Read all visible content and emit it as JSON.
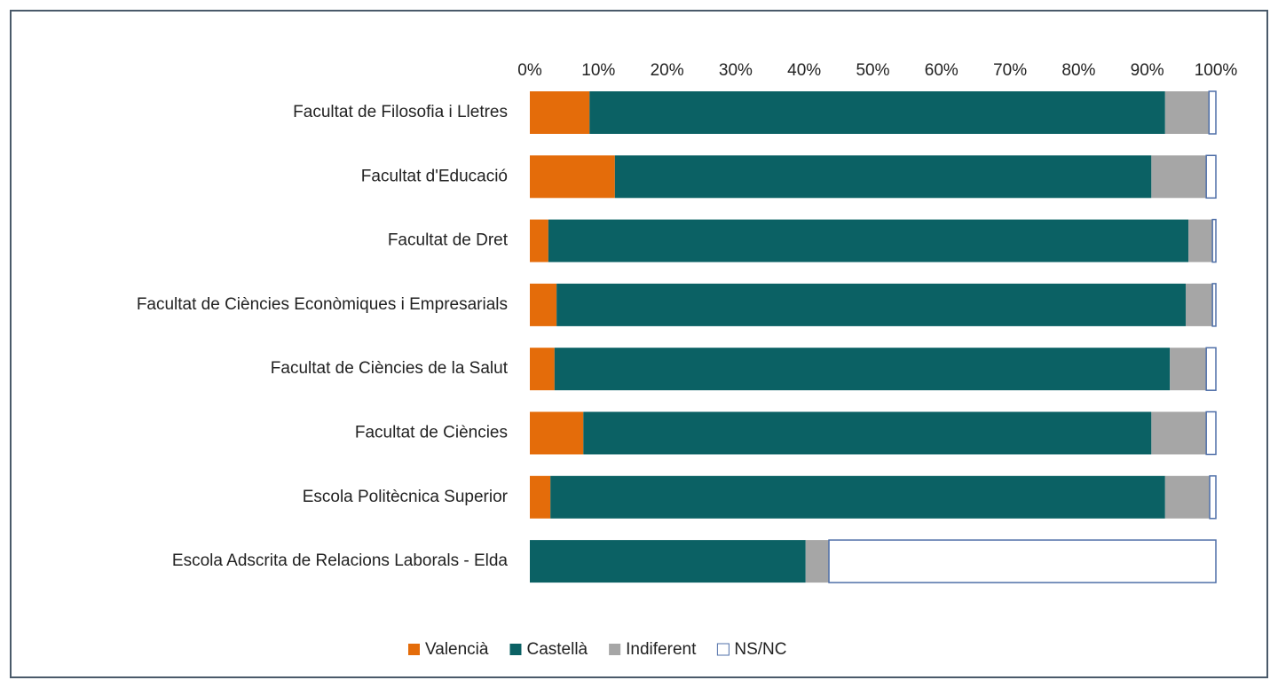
{
  "chart_data": {
    "type": "bar",
    "orientation": "horizontal",
    "stacked": true,
    "categories": [
      "Facultat de Filosofia i Lletres",
      "Facultat d'Educació",
      "Facultat de Dret",
      "Facultat de Ciències Econòmiques i Empresarials",
      "Facultat de Ciències de la Salut",
      "Facultat de Ciències",
      "Escola Politècnica Superior",
      "Escola Adscrita de Relacions Laborals - Elda"
    ],
    "series": [
      {
        "name": "Valencià",
        "color": "#e46c0a",
        "values": [
          8.7,
          12.4,
          2.7,
          3.9,
          3.6,
          7.8,
          3.0,
          0
        ]
      },
      {
        "name": "Castellà",
        "color": "#0b6164",
        "values": [
          83.9,
          78.2,
          93.3,
          91.7,
          89.7,
          82.8,
          89.6,
          40.2
        ]
      },
      {
        "name": "Indiferent",
        "color": "#a6a6a6",
        "values": [
          6.4,
          8.0,
          3.5,
          3.9,
          5.3,
          8.0,
          6.5,
          3.4
        ]
      },
      {
        "name": "NS/NC",
        "color": "#ffffff",
        "values": [
          1.0,
          1.4,
          0.5,
          0.5,
          1.4,
          1.4,
          0.9,
          56.4
        ]
      }
    ],
    "bar_edgecolor": "#4f6fa8",
    "xlim": [
      0,
      100
    ],
    "xticks": [
      {
        "value": 0,
        "label": "0%"
      },
      {
        "value": 10,
        "label": "10%"
      },
      {
        "value": 20,
        "label": "20%"
      },
      {
        "value": 30,
        "label": "30%"
      },
      {
        "value": 40,
        "label": "40%"
      },
      {
        "value": 50,
        "label": "50%"
      },
      {
        "value": 60,
        "label": "60%"
      },
      {
        "value": 70,
        "label": "70%"
      },
      {
        "value": 80,
        "label": "80%"
      },
      {
        "value": 90,
        "label": "90%"
      },
      {
        "value": 100,
        "label": "100%"
      }
    ],
    "xaxis_position": "top",
    "grid": false,
    "legend": "bottom"
  }
}
